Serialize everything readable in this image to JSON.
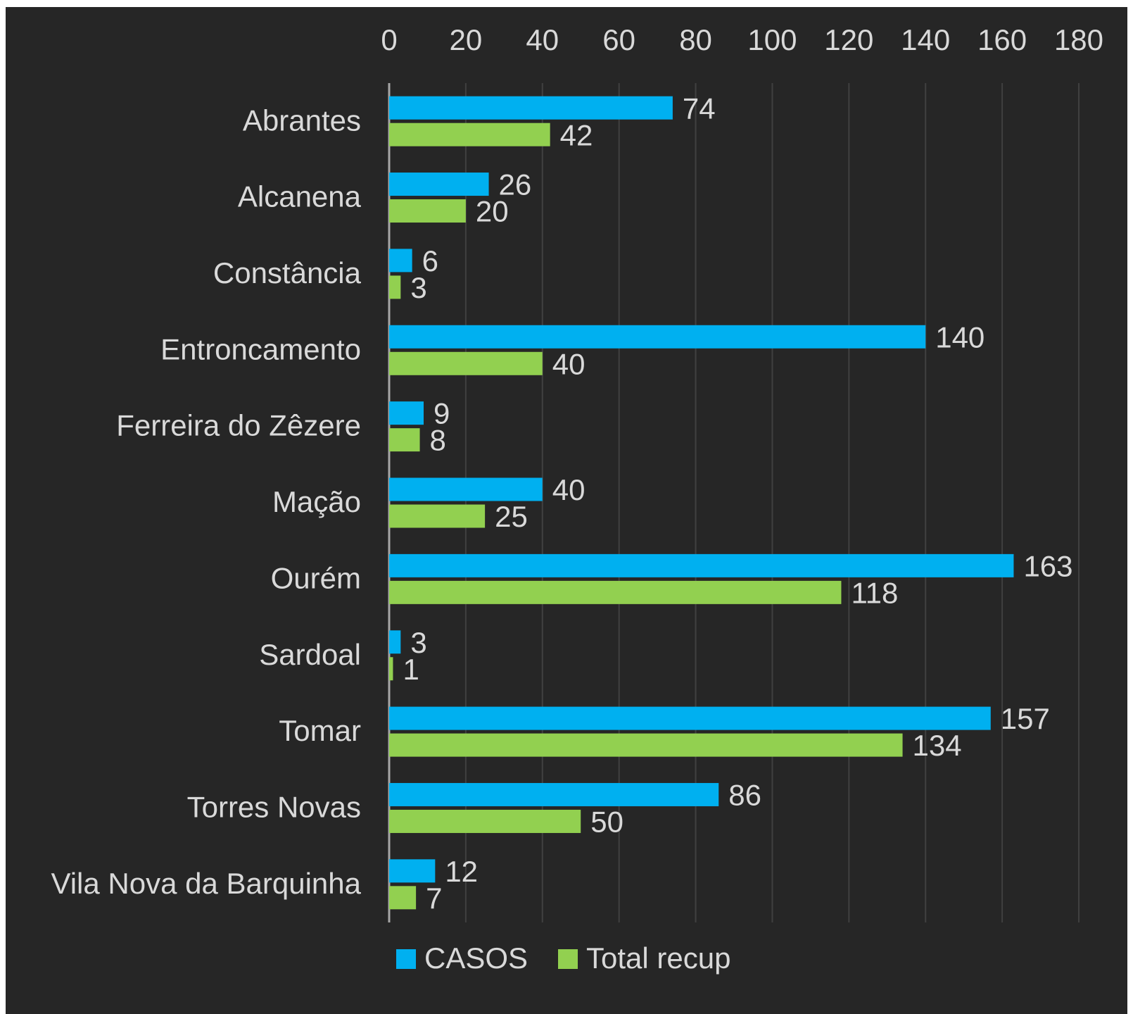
{
  "chart_data": {
    "type": "bar",
    "orientation": "horizontal",
    "categories": [
      "Abrantes",
      "Alcanena",
      "Constância",
      "Entroncamento",
      "Ferreira do Zêzere",
      "Mação",
      "Ourém",
      "Sardoal",
      "Tomar",
      "Torres Novas",
      "Vila Nova da Barquinha"
    ],
    "series": [
      {
        "name": "CASOS",
        "color": "#00b0f0",
        "values": [
          74,
          26,
          6,
          140,
          9,
          40,
          163,
          3,
          157,
          86,
          12
        ]
      },
      {
        "name": "Total recup",
        "color": "#92d050",
        "values": [
          42,
          20,
          3,
          40,
          8,
          25,
          118,
          1,
          134,
          50,
          7
        ]
      }
    ],
    "xlim": [
      0,
      180
    ],
    "x_ticks": [
      "0",
      "20",
      "40",
      "60",
      "80",
      "100",
      "120",
      "140",
      "160",
      "180"
    ],
    "axis_position": "top",
    "grid": true,
    "data_labels": true,
    "legend_position": "bottom",
    "background": "#262626",
    "text_color": "#d9d9d9",
    "grid_color": "#404040"
  }
}
